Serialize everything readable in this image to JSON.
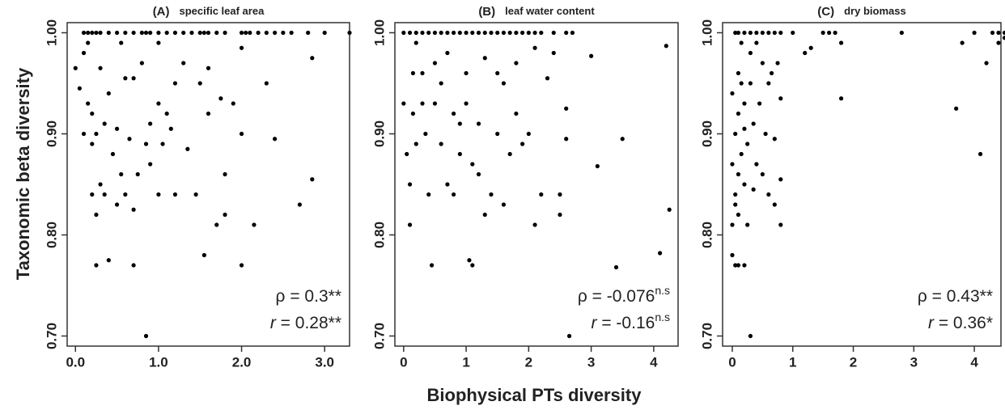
{
  "x_label": "Biophysical PTs diversity",
  "y_label": "Taxonomic beta diversity",
  "chart_data": [
    {
      "type": "scatter",
      "title": "(A)",
      "subtitle": "specific leaf area",
      "color": "#000000",
      "xlim": [
        -0.1,
        3.3
      ],
      "ylim": [
        0.69,
        1.01
      ],
      "xticks": [
        {
          "value": 0,
          "label": "0.0"
        },
        {
          "value": 1,
          "label": "1.0"
        },
        {
          "value": 2,
          "label": "2.0"
        },
        {
          "value": 3,
          "label": "3.0"
        }
      ],
      "yticks": [
        {
          "value": 0.7,
          "label": "0.70"
        },
        {
          "value": 0.8,
          "label": "0.80"
        },
        {
          "value": 0.9,
          "label": "0.90"
        },
        {
          "value": 1,
          "label": "1.00"
        }
      ],
      "annotations": [
        {
          "symbol": "ρ",
          "italic": false,
          "text": " = 0.3",
          "sig": "**",
          "sup": false
        },
        {
          "symbol": "r",
          "italic": true,
          "text": " = 0.28",
          "sig": "**",
          "sup": false
        }
      ],
      "x": [
        0.1,
        0.15,
        0.2,
        0.25,
        0.3,
        0.4,
        0.5,
        0.6,
        0.7,
        0.8,
        0.85,
        0.9,
        1.0,
        1.1,
        1.2,
        1.3,
        1.4,
        1.5,
        1.55,
        1.6,
        1.7,
        1.8,
        2.0,
        2.05,
        2.1,
        2.2,
        2.3,
        2.4,
        2.5,
        2.6,
        2.8,
        3.0,
        3.3,
        0.0,
        0.05,
        0.1,
        0.15,
        0.2,
        0.15,
        0.25,
        0.2,
        0.3,
        0.35,
        0.25,
        0.2,
        0.4,
        0.25,
        0.5,
        0.55,
        0.6,
        0.7,
        0.7,
        0.85,
        0.9,
        0.85,
        0.9,
        1.0,
        1.1,
        1.05,
        1.0,
        1.2,
        1.3,
        1.2,
        1.5,
        1.45,
        1.55,
        1.7,
        1.8,
        1.8,
        2.0,
        2.15,
        2.0,
        1.9,
        2.4,
        2.3,
        2.7,
        2.85,
        2.85,
        2.0,
        1.6,
        0.5,
        0.6,
        0.4,
        0.7,
        0.8,
        1.0,
        0.3,
        0.45,
        0.65,
        0.75,
        1.15,
        1.35,
        1.6,
        1.75,
        0.55,
        0.1,
        0.35
      ],
      "values": [
        1,
        1,
        1,
        1,
        1,
        1,
        1,
        1,
        1,
        1,
        1,
        1,
        1,
        1,
        1,
        1,
        1,
        1,
        1,
        1,
        1,
        1,
        1,
        1,
        1,
        1,
        1,
        1,
        1,
        1,
        1,
        1,
        1,
        0.965,
        0.945,
        0.98,
        0.99,
        0.92,
        0.93,
        0.9,
        0.89,
        0.85,
        0.84,
        0.82,
        0.84,
        0.775,
        0.77,
        0.83,
        0.86,
        0.84,
        0.825,
        0.77,
        0.7,
        0.87,
        0.89,
        0.91,
        0.93,
        0.92,
        0.89,
        0.84,
        0.84,
        0.97,
        0.95,
        0.95,
        0.84,
        0.78,
        0.81,
        0.86,
        0.82,
        0.77,
        0.81,
        0.9,
        0.93,
        0.895,
        0.95,
        0.83,
        0.855,
        0.975,
        0.985,
        0.965,
        0.905,
        0.955,
        0.94,
        0.955,
        0.97,
        0.99,
        0.965,
        0.88,
        0.895,
        0.86,
        0.905,
        0.885,
        0.92,
        0.935,
        0.99,
        0.9,
        0.91
      ]
    },
    {
      "type": "scatter",
      "title": "(B)",
      "subtitle": "leaf water content",
      "color": "#000000",
      "xlim": [
        -0.14,
        4.39
      ],
      "ylim": [
        0.69,
        1.01
      ],
      "xticks": [
        0,
        1,
        2,
        3,
        4
      ],
      "yticks": [
        {
          "value": 0.7,
          "label": "0.70"
        },
        {
          "value": 0.8,
          "label": "0.80"
        },
        {
          "value": 0.9,
          "label": "0.90"
        },
        {
          "value": 1,
          "label": "1.00"
        }
      ],
      "annotations": [
        {
          "symbol": "ρ",
          "italic": false,
          "text": " = -0.076",
          "sig": "n.s",
          "sup": true
        },
        {
          "symbol": "r",
          "italic": true,
          "text": " = -0.16",
          "sig": "n.s",
          "sup": true
        }
      ],
      "x": [
        0.0,
        0.1,
        0.2,
        0.3,
        0.4,
        0.5,
        0.6,
        0.7,
        0.8,
        0.9,
        1.0,
        1.1,
        1.2,
        1.3,
        1.4,
        1.5,
        1.6,
        1.7,
        1.8,
        1.9,
        2.0,
        2.1,
        2.2,
        2.4,
        2.6,
        2.7,
        0,
        0.05,
        0.1,
        0.1,
        0.15,
        0.2,
        0.3,
        0.35,
        0.4,
        0.45,
        0.5,
        0.6,
        0.7,
        0.8,
        0.9,
        1.0,
        1.05,
        1.1,
        1.1,
        1.2,
        1.3,
        1.4,
        1.5,
        1.6,
        1.7,
        1.8,
        2.0,
        2.1,
        2.2,
        2.5,
        2.5,
        2.6,
        2.65,
        2.6,
        3.0,
        3.1,
        3.5,
        3.4,
        4.1,
        4.25,
        4.2,
        0.2,
        0.5,
        0.7,
        1.0,
        1.3,
        1.5,
        1.8,
        2.1,
        2.3,
        0.3,
        0.6,
        0.9,
        1.2,
        1.6,
        2.4,
        0.15,
        0.8,
        1.9
      ],
      "values": [
        1,
        1,
        1,
        1,
        1,
        1,
        1,
        1,
        1,
        1,
        1,
        1,
        1,
        1,
        1,
        1,
        1,
        1,
        1,
        1,
        1,
        1,
        1,
        1,
        1,
        1,
        0.93,
        0.88,
        0.85,
        0.81,
        0.92,
        0.89,
        0.96,
        0.9,
        0.84,
        0.77,
        0.93,
        0.95,
        0.85,
        0.84,
        0.91,
        0.93,
        0.775,
        0.77,
        0.87,
        0.86,
        0.82,
        0.84,
        0.9,
        0.83,
        0.88,
        0.92,
        0.9,
        0.81,
        0.84,
        0.84,
        0.82,
        0.895,
        0.7,
        0.925,
        0.977,
        0.868,
        0.895,
        0.768,
        0.782,
        0.825,
        0.987,
        0.99,
        0.97,
        0.98,
        0.96,
        0.975,
        0.96,
        0.97,
        0.985,
        0.955,
        0.93,
        0.89,
        0.88,
        0.91,
        0.95,
        0.98,
        0.96,
        0.92,
        0.89
      ]
    },
    {
      "type": "scatter",
      "title": "(C)",
      "subtitle": "dry biomass",
      "color": "#000000",
      "xlim": [
        -0.16,
        4.44
      ],
      "ylim": [
        0.69,
        1.01
      ],
      "xticks": [
        0,
        1,
        2,
        3,
        4
      ],
      "yticks": [
        {
          "value": 0.7,
          "label": "0.70"
        },
        {
          "value": 0.8,
          "label": "0.80"
        },
        {
          "value": 0.9,
          "label": "0.90"
        },
        {
          "value": 1,
          "label": "1.00"
        }
      ],
      "annotations": [
        {
          "symbol": "ρ",
          "italic": false,
          "text": " = 0.43",
          "sig": "**",
          "sup": false
        },
        {
          "symbol": "r",
          "italic": true,
          "text": " = 0.36",
          "sig": "*",
          "sup": false
        }
      ],
      "x": [
        0.05,
        0.1,
        0.2,
        0.3,
        0.4,
        0.5,
        0.6,
        0.7,
        0.8,
        1.0,
        1.5,
        1.6,
        1.7,
        2.8,
        4.0,
        4.3,
        4.4,
        4.5,
        4.6,
        0,
        0.05,
        0.1,
        0.3,
        0.2,
        0.0,
        0.05,
        0.1,
        0.15,
        0.05,
        0.1,
        0.2,
        0.3,
        0.25,
        0.4,
        0.5,
        0.6,
        0.7,
        0.8,
        0.8,
        0.7,
        0.8,
        0.6,
        0.5,
        0.3,
        0.1,
        0.0,
        0.2,
        0.35,
        0.45,
        0.55,
        0.65,
        0.75,
        0.4,
        0.15,
        1.2,
        1.3,
        1.8,
        1.8,
        3.7,
        3.8,
        4.1,
        4.2,
        4.4,
        4.55,
        4.5,
        0.05,
        0.1,
        0.25,
        0.15,
        0.35,
        0.0,
        0.2
      ],
      "values": [
        1,
        1,
        1,
        1,
        1,
        1,
        1,
        1,
        1,
        1,
        1,
        1,
        1,
        1,
        1,
        1,
        1,
        1,
        1,
        0.78,
        0.77,
        0.77,
        0.7,
        0.77,
        0.81,
        0.84,
        0.86,
        0.88,
        0.9,
        0.92,
        0.93,
        0.95,
        0.89,
        0.87,
        0.86,
        0.84,
        0.83,
        0.81,
        0.855,
        0.895,
        0.935,
        0.95,
        0.97,
        0.98,
        0.96,
        0.94,
        0.85,
        0.91,
        0.93,
        0.9,
        0.96,
        0.97,
        0.99,
        0.99,
        0.98,
        0.985,
        0.99,
        0.935,
        0.925,
        0.99,
        0.88,
        0.97,
        0.99,
        0.98,
        0.995,
        0.83,
        0.82,
        0.81,
        0.95,
        0.845,
        0.87,
        0.905
      ]
    }
  ]
}
